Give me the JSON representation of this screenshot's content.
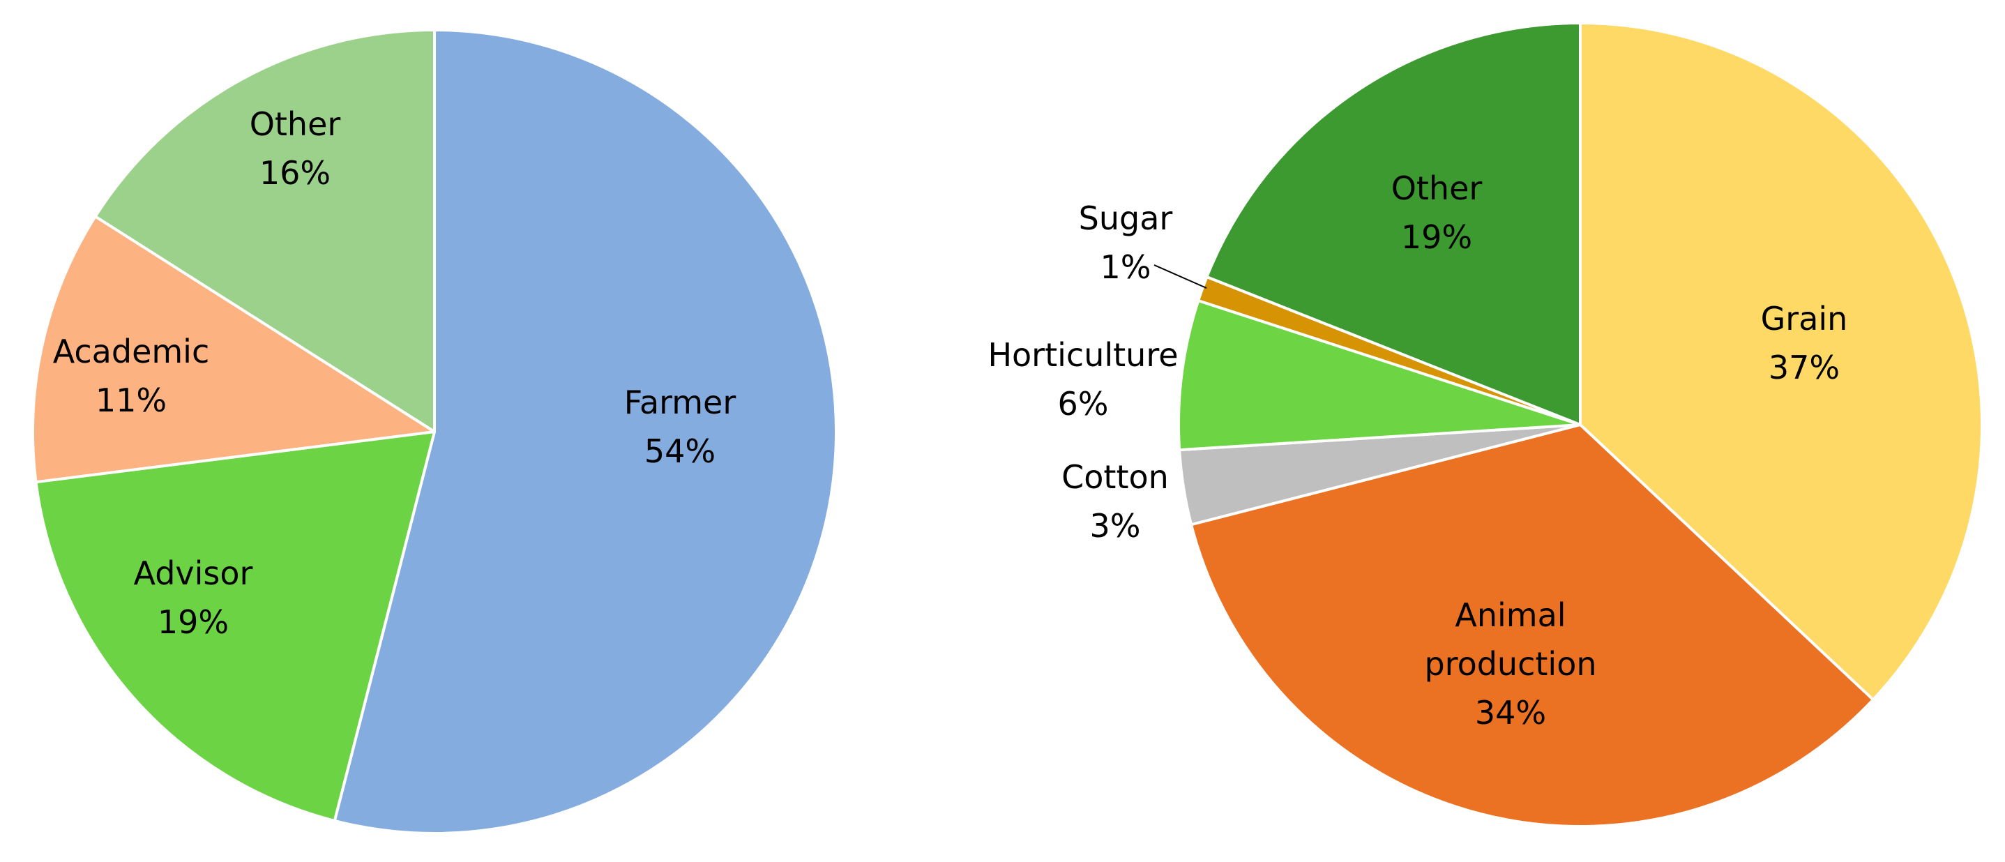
{
  "chart_data": [
    {
      "type": "pie",
      "start_angle_deg": 0,
      "direction": "clockwise",
      "slices": [
        {
          "label": "Farmer",
          "percent_label": "54%",
          "value": 54,
          "color": "#85acdf"
        },
        {
          "label": "Advisor",
          "percent_label": "19%",
          "value": 19,
          "color": "#6cd344"
        },
        {
          "label": "Academic",
          "percent_label": "11%",
          "value": 11,
          "color": "#fdb381"
        },
        {
          "label": "Other",
          "percent_label": "16%",
          "value": 16,
          "color": "#9bd18a"
        }
      ]
    },
    {
      "type": "pie",
      "start_angle_deg": 0,
      "direction": "clockwise",
      "slices": [
        {
          "label": "Grain",
          "percent_label": "37%",
          "value": 37,
          "color": "#fed966"
        },
        {
          "label": "Animal production",
          "percent_label": "34%",
          "value": 34,
          "color": "#eb7123"
        },
        {
          "label": "Cotton",
          "percent_label": "3%",
          "value": 3,
          "color": "#bfbfbf"
        },
        {
          "label": "Horticulture",
          "percent_label": "6%",
          "value": 6,
          "color": "#6dd443"
        },
        {
          "label": "Sugar",
          "percent_label": "1%",
          "value": 1,
          "color": "#d69303"
        },
        {
          "label": "Other",
          "percent_label": "19%",
          "value": 19,
          "color": "#3c9a30"
        }
      ]
    }
  ]
}
